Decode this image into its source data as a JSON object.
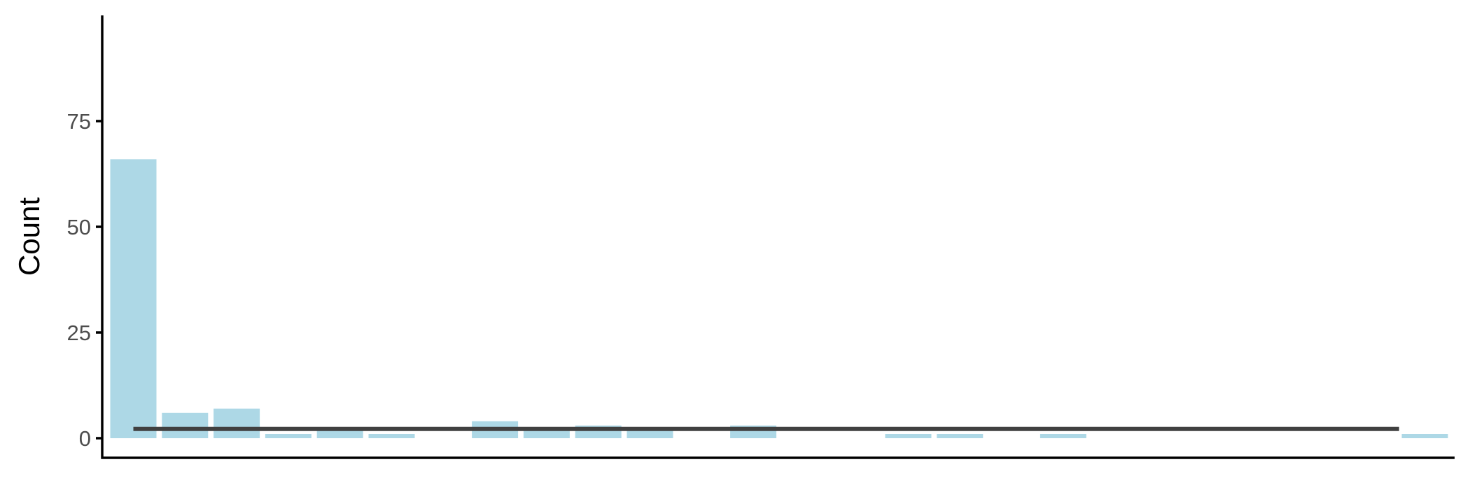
{
  "chart_data": {
    "type": "bar",
    "title": "",
    "xlabel": "",
    "ylabel": "Count",
    "ylim": [
      0,
      100
    ],
    "yticks": [
      0,
      25,
      50,
      75
    ],
    "ytick_labels": [
      "0",
      "25",
      "50",
      "75"
    ],
    "x_slots": 26,
    "bars": [
      {
        "slot": 1,
        "value": 66
      },
      {
        "slot": 2,
        "value": 6
      },
      {
        "slot": 3,
        "value": 7
      },
      {
        "slot": 4,
        "value": 1
      },
      {
        "slot": 5,
        "value": 2
      },
      {
        "slot": 6,
        "value": 1
      },
      {
        "slot": 8,
        "value": 4
      },
      {
        "slot": 9,
        "value": 2
      },
      {
        "slot": 10,
        "value": 3
      },
      {
        "slot": 11,
        "value": 2
      },
      {
        "slot": 13,
        "value": 3
      },
      {
        "slot": 16,
        "value": 1
      },
      {
        "slot": 17,
        "value": 1
      },
      {
        "slot": 19,
        "value": 1
      },
      {
        "slot": 26,
        "value": 1
      }
    ],
    "reference_line": {
      "value": 2.2,
      "from_slot": 1,
      "to_slot": 25
    },
    "colors": {
      "bar": "#add8e6",
      "reference_line": "#404040",
      "axis": "#000000"
    },
    "grid": false,
    "legend": "none"
  }
}
